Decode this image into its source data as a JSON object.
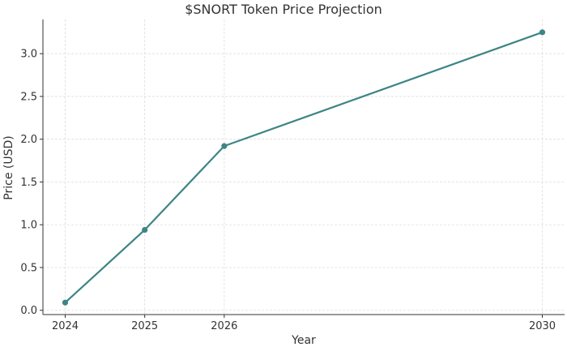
{
  "chart_data": {
    "type": "line",
    "title": "$SNORT Token Price Projection",
    "xlabel": "Year",
    "ylabel": "Price (USD)",
    "x": [
      2024,
      2025,
      2026,
      2030
    ],
    "series": [
      {
        "values": [
          0.09,
          0.94,
          1.92,
          3.25
        ]
      }
    ],
    "x_ticks": [
      "2024",
      "2025",
      "2026",
      "2030"
    ],
    "y_ticks": [
      "0.0",
      "0.5",
      "1.0",
      "1.5",
      "2.0",
      "2.5",
      "3.0"
    ],
    "xlim": [
      2023.72,
      2030.28
    ],
    "ylim": [
      -0.05,
      3.4
    ],
    "grid": true,
    "line_color": "#3d8585",
    "marker": "circle"
  }
}
